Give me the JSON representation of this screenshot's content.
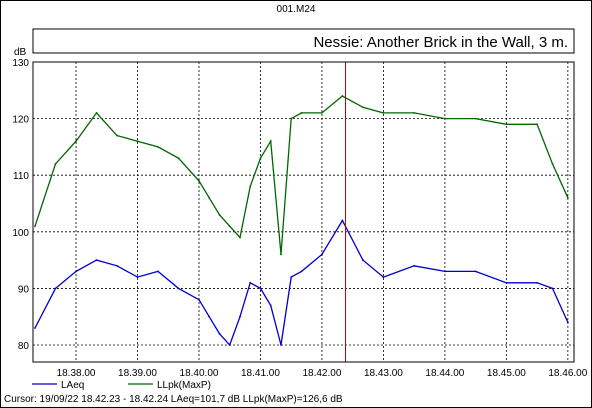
{
  "window_title": "001.M24",
  "unit_label": "dB",
  "legend": [
    {
      "name": "LAeq",
      "color": "#0000cc"
    },
    {
      "name": "LLpk(MaxP)",
      "color": "#006600"
    }
  ],
  "cursor_readout": "Cursor: 19/09/22 18.42.23 - 18.42.24  LAeq=101,7 dB  LLpk(MaxP)=126,6 dB",
  "chart_data": {
    "type": "line",
    "title": "Nessie: Another Brick in the Wall, 3 m.",
    "ylabel": "dB",
    "ylim": [
      77,
      130
    ],
    "xlim_minutes": [
      37.3,
      46.1
    ],
    "x_ticks": [
      "18.38.00",
      "18.39.00",
      "18.40.00",
      "18.41.00",
      "18.42.00",
      "18.43.00",
      "18.44.00",
      "18.45.00",
      "18.46.00"
    ],
    "y_ticks": [
      80,
      90,
      100,
      110,
      120,
      130
    ],
    "grid": true,
    "legend_position": "bottom-left",
    "cursor_x": "18.42.23",
    "series": [
      {
        "name": "LLpk(MaxP)",
        "color": "#006600",
        "x": [
          "18.37.20",
          "18.37.40",
          "18.38.00",
          "18.38.20",
          "18.38.40",
          "18.39.00",
          "18.39.20",
          "18.39.40",
          "18.40.00",
          "18.40.10",
          "18.40.20",
          "18.40.30",
          "18.40.40",
          "18.40.50",
          "18.41.00",
          "18.41.10",
          "18.41.20",
          "18.41.30",
          "18.41.40",
          "18.42.00",
          "18.42.20",
          "18.42.40",
          "18.43.00",
          "18.43.30",
          "18.44.00",
          "18.44.30",
          "18.45.00",
          "18.45.30",
          "18.45.45",
          "18.46.00"
        ],
        "values": [
          101,
          112,
          116,
          121,
          117,
          116,
          115,
          113,
          109,
          106,
          103,
          101,
          99,
          108,
          113,
          116,
          96,
          120,
          121,
          121,
          124,
          122,
          121,
          121,
          120,
          120,
          119,
          119,
          112,
          106
        ]
      },
      {
        "name": "LAeq",
        "color": "#0000cc",
        "x": [
          "18.37.20",
          "18.37.40",
          "18.38.00",
          "18.38.20",
          "18.38.40",
          "18.39.00",
          "18.39.20",
          "18.39.40",
          "18.40.00",
          "18.40.10",
          "18.40.20",
          "18.40.30",
          "18.40.40",
          "18.40.50",
          "18.41.00",
          "18.41.10",
          "18.41.20",
          "18.41.30",
          "18.41.40",
          "18.42.00",
          "18.42.20",
          "18.42.40",
          "18.43.00",
          "18.43.30",
          "18.44.00",
          "18.44.30",
          "18.45.00",
          "18.45.30",
          "18.45.45",
          "18.46.00"
        ],
        "values": [
          83,
          90,
          93,
          95,
          94,
          92,
          93,
          90,
          88,
          85,
          82,
          80,
          85,
          91,
          90,
          87,
          80,
          92,
          93,
          96,
          102,
          95,
          92,
          94,
          93,
          93,
          91,
          91,
          90,
          84
        ]
      }
    ]
  }
}
